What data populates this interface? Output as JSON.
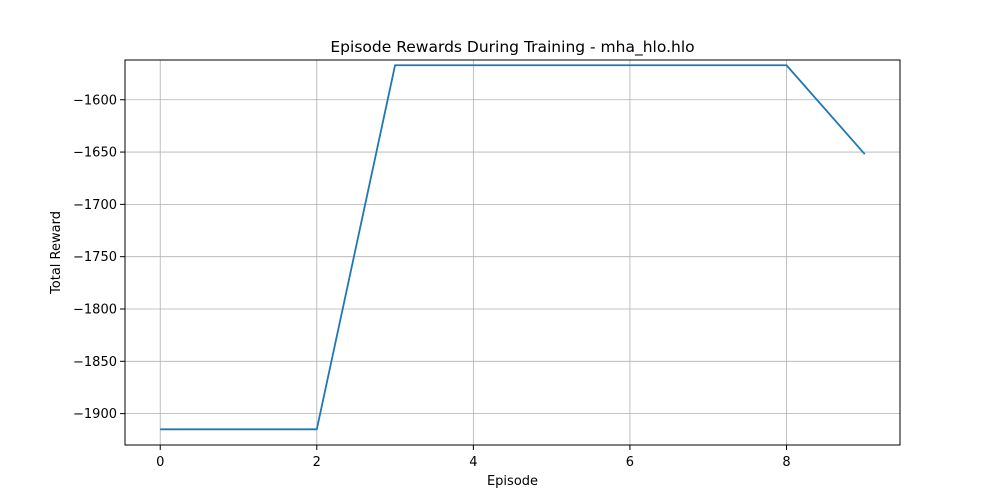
{
  "chart_data": {
    "type": "line",
    "title": "Episode Rewards During Training - mha_hlo.hlo",
    "xlabel": "Episode",
    "ylabel": "Total Reward",
    "xlim": [
      -0.45,
      9.45
    ],
    "ylim": [
      -1930,
      -1562
    ],
    "xticks": [
      0,
      2,
      4,
      6,
      8
    ],
    "xtick_labels": [
      "0",
      "2",
      "4",
      "6",
      "8"
    ],
    "yticks": [
      -1900,
      -1850,
      -1800,
      -1750,
      -1700,
      -1650,
      -1600
    ],
    "ytick_labels": [
      "−1900",
      "−1850",
      "−1800",
      "−1750",
      "−1700",
      "−1650",
      "−1600"
    ],
    "grid": true,
    "series": [
      {
        "color": "#1f77b4",
        "x": [
          0,
          1,
          2,
          3,
          4,
          5,
          6,
          7,
          8,
          9
        ],
        "y": [
          -1915,
          -1915,
          -1915,
          -1567,
          -1567,
          -1567,
          -1567,
          -1567,
          -1567,
          -1652
        ]
      }
    ]
  }
}
